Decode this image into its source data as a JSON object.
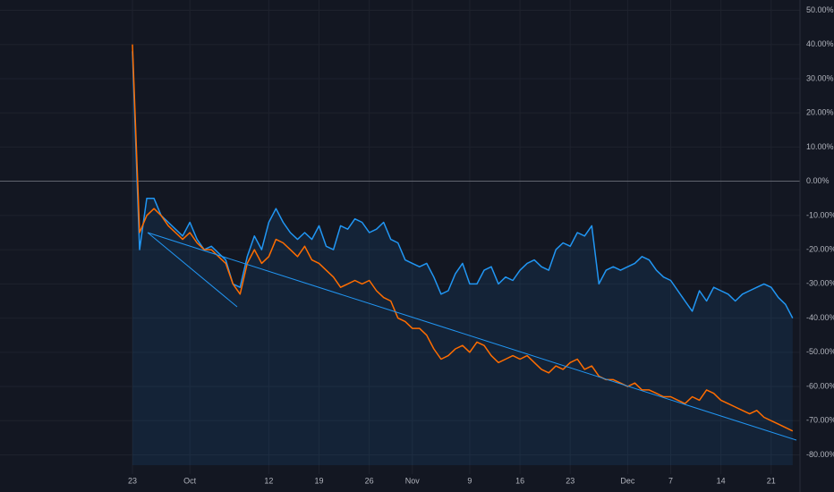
{
  "chart_data": {
    "type": "line",
    "categories": [
      "23",
      null,
      null,
      null,
      null,
      null,
      null,
      null,
      "Oct",
      null,
      null,
      null,
      null,
      null,
      null,
      null,
      null,
      null,
      null,
      "12",
      null,
      null,
      null,
      null,
      null,
      null,
      "19",
      null,
      null,
      null,
      null,
      null,
      null,
      "26",
      null,
      null,
      null,
      null,
      null,
      "Nov",
      null,
      null,
      null,
      null,
      null,
      null,
      null,
      "9",
      null,
      null,
      null,
      null,
      null,
      null,
      "16",
      null,
      null,
      null,
      null,
      null,
      null,
      "23",
      null,
      null,
      null,
      null,
      null,
      null,
      null,
      "Dec",
      null,
      null,
      null,
      null,
      null,
      "7",
      null,
      null,
      null,
      null,
      null,
      null,
      "14",
      null,
      null,
      null,
      null,
      null,
      null,
      "21",
      null,
      null,
      null
    ],
    "series": [
      {
        "color": "#2196f3",
        "values": [
          38,
          -20,
          -5,
          -5,
          -10,
          -12,
          -14,
          -16,
          -12,
          -17,
          -20,
          -19,
          -21,
          -23,
          -30,
          -31,
          -22,
          -16,
          -20,
          -12,
          -8,
          -12,
          -15,
          -17,
          -15,
          -17,
          -13,
          -19,
          -20,
          -13,
          -14,
          -11,
          -12,
          -15,
          -14,
          -12,
          -17,
          -18,
          -23,
          -24,
          -25,
          -24,
          -28,
          -33,
          -32,
          -27,
          -24,
          -30,
          -30,
          -26,
          -25,
          -30,
          -28,
          -29,
          -26,
          -24,
          -23,
          -25,
          -26,
          -20,
          -18,
          -19,
          -15,
          -16,
          -13,
          -30,
          -26,
          -25,
          -26,
          -25,
          -24,
          -22,
          -23,
          -26,
          -28,
          -29,
          -32,
          -35,
          -38,
          -32,
          -35,
          -31,
          -32,
          -33,
          -35,
          -33,
          -32,
          -31,
          -30,
          -31,
          -34,
          -36,
          -40
        ]
      },
      {
        "color": "#ff6d00",
        "values": [
          40,
          -15,
          -10,
          -8,
          -10,
          -13,
          -15,
          -17,
          -15,
          -18,
          -20,
          -20,
          -22,
          -24,
          -30,
          -33,
          -24,
          -20,
          -24,
          -22,
          -17,
          -18,
          -20,
          -22,
          -19,
          -23,
          -24,
          -26,
          -28,
          -31,
          -30,
          -29,
          -30,
          -29,
          -32,
          -34,
          -35,
          -40,
          -41,
          -43,
          -43,
          -45,
          -49,
          -52,
          -51,
          -49,
          -48,
          -50,
          -47,
          -48,
          -51,
          -53,
          -52,
          -51,
          -52,
          -51,
          -53,
          -55,
          -56,
          -54,
          -55,
          -53,
          -52,
          -55,
          -54,
          -57,
          -58,
          -58,
          -59,
          -60,
          -59,
          -61,
          -61,
          -62,
          -63,
          -63,
          -64,
          -65,
          -63,
          -64,
          -61,
          -62,
          -64,
          -65,
          -66,
          -67,
          -68,
          -67,
          -69,
          -70,
          -71,
          -72,
          -73
        ]
      }
    ],
    "ylim": [
      -83,
      53
    ],
    "yticks": [
      {
        "value": 50,
        "label": "50.00%"
      },
      {
        "value": 40,
        "label": "40.00%"
      },
      {
        "value": 30,
        "label": "30.00%"
      },
      {
        "value": 20,
        "label": "20.00%"
      },
      {
        "value": 10,
        "label": "10.00%"
      },
      {
        "value": 0,
        "label": "0.00%"
      },
      {
        "value": -10,
        "label": "-10.00%"
      },
      {
        "value": -20,
        "label": "-20.00%"
      },
      {
        "value": -30,
        "label": "-30.00%"
      },
      {
        "value": -40,
        "label": "-40.00%"
      },
      {
        "value": -50,
        "label": "-50.00%"
      },
      {
        "value": -60,
        "label": "-60.00%"
      },
      {
        "value": -70,
        "label": "-70.00%"
      },
      {
        "value": -80,
        "label": "-80.00%"
      }
    ],
    "grid": true
  }
}
